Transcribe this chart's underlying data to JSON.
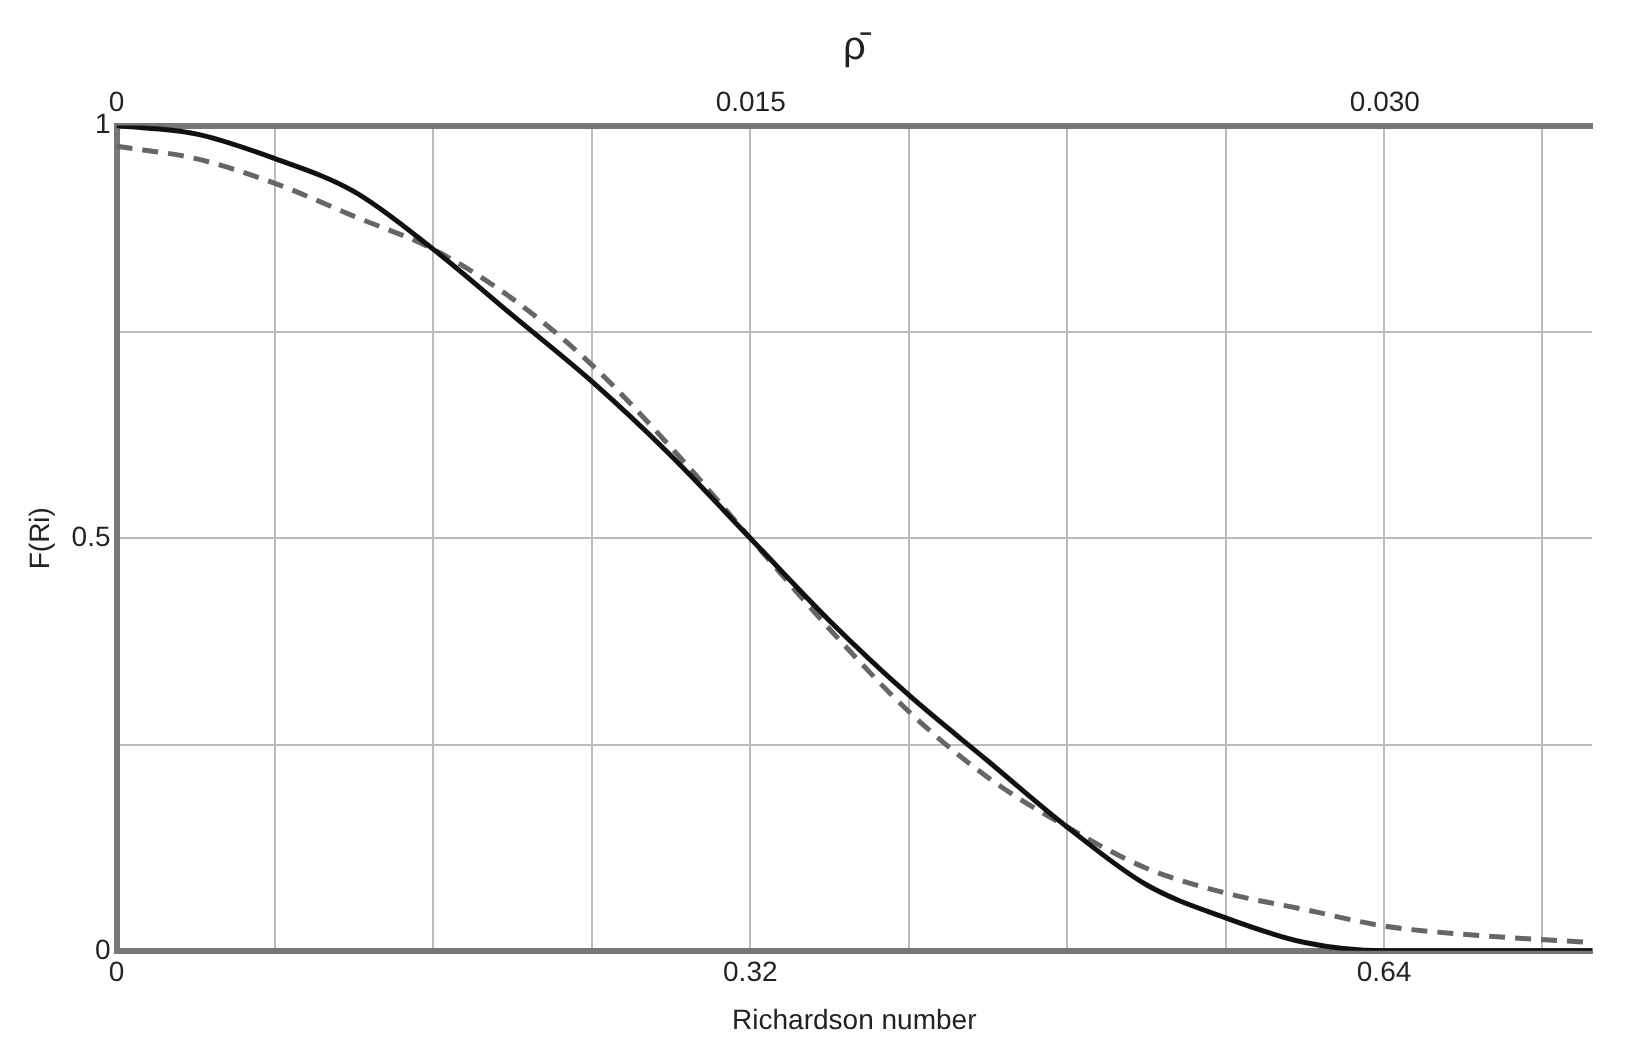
{
  "chart_data": {
    "type": "line",
    "xlabel": "Richardson number",
    "ylabel": "F(Ri)",
    "x2label": "ρ̄",
    "xlim": [
      0,
      0.745
    ],
    "xticks": [
      0,
      {
        "value": 0.08,
        "label": null
      },
      {
        "value": 0.16,
        "label": null
      },
      {
        "value": 0.24,
        "label": null
      },
      0.32,
      {
        "value": 0.4,
        "label": null
      },
      {
        "value": 0.48,
        "label": null
      },
      {
        "value": 0.56,
        "label": null
      },
      0.64,
      {
        "value": 0.72,
        "label": null
      }
    ],
    "x2lim": [
      0,
      0.0349
    ],
    "x2ticks": [
      0,
      0.015,
      {
        "value": 0.03,
        "label": "0.030"
      }
    ],
    "ylim": [
      0,
      1
    ],
    "yticks": [
      0,
      {
        "value": 0.25,
        "label": null
      },
      0.5,
      {
        "value": 0.75,
        "label": null
      },
      1
    ],
    "grid": true,
    "legend": false,
    "marker": "none",
    "series": [
      {
        "color": "#111111",
        "line_style": "solid",
        "x": [
          0,
          0.04,
          0.08,
          0.12,
          0.16,
          0.2,
          0.24,
          0.28,
          0.32,
          0.36,
          0.4,
          0.44,
          0.48,
          0.52,
          0.56,
          0.6,
          0.64,
          0.745
        ],
        "values": [
          1,
          0.99,
          0.96,
          0.92,
          0.85,
          0.77,
          0.69,
          0.6,
          0.5,
          0.4,
          0.31,
          0.23,
          0.15,
          0.08,
          0.04,
          0.01,
          0,
          0
        ]
      },
      {
        "color": "#666666",
        "line_style": "dashed",
        "x": [
          0,
          0.04,
          0.08,
          0.12,
          0.16,
          0.2,
          0.24,
          0.28,
          0.32,
          0.36,
          0.4,
          0.44,
          0.48,
          0.52,
          0.56,
          0.6,
          0.64,
          0.68,
          0.745
        ],
        "values": [
          0.975,
          0.96,
          0.93,
          0.89,
          0.85,
          0.79,
          0.71,
          0.61,
          0.5,
          0.39,
          0.29,
          0.21,
          0.15,
          0.1,
          0.07,
          0.05,
          0.03,
          0.02,
          0.01
        ]
      }
    ]
  }
}
